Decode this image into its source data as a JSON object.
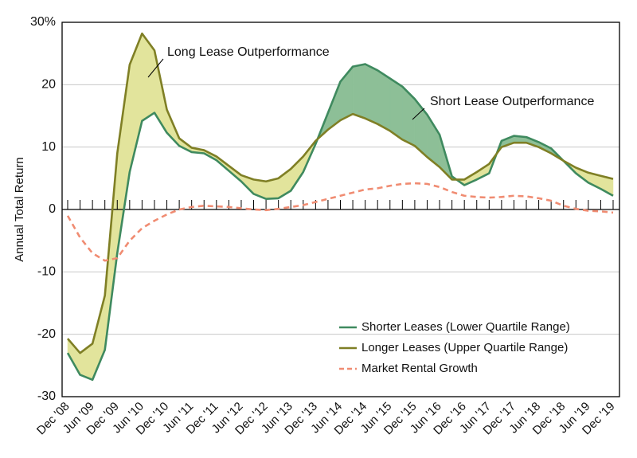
{
  "chart_data": {
    "type": "line",
    "y_label": "Annual Total Return",
    "categories": [
      "Dec '08",
      null,
      "Jun '09",
      null,
      "Dec '09",
      null,
      "Jun '10",
      null,
      "Dec '10",
      null,
      "Jun '11",
      null,
      "Dec '11",
      null,
      "Jun '12",
      null,
      "Dec '12",
      null,
      "Jun '13",
      null,
      "Dec '13",
      null,
      "Jun '14",
      null,
      "Dec '14",
      null,
      "Jun '15",
      null,
      "Dec '15",
      null,
      "Jun '16",
      null,
      "Dec '16",
      null,
      "Jun '17",
      null,
      "Dec '17",
      null,
      "Jun '18",
      null,
      "Dec '18",
      null,
      "Jun '19",
      null,
      "Dec '19"
    ],
    "series": [
      {
        "name": "Shorter Leases (Lower Quartile Range)",
        "color": "#3f8a5f",
        "values": [
          -23,
          -26.5,
          -27.3,
          -22.5,
          -7,
          6,
          14.2,
          15.5,
          12.3,
          10.2,
          9.2,
          9,
          7.9,
          6.2,
          4.5,
          2.5,
          1.7,
          1.8,
          3,
          6,
          10.5,
          15.5,
          20.5,
          22.9,
          23.3,
          22.3,
          21,
          19.7,
          17.7,
          15.2,
          12,
          5.3,
          3.9,
          4.8,
          5.8,
          11,
          11.8,
          11.6,
          10.8,
          9.8,
          7.8,
          5.8,
          4.3,
          3.3,
          2.2
        ]
      },
      {
        "name": "Longer Leases (Upper Quartile Range)",
        "color": "#7f7f25",
        "values": [
          -20.7,
          -23,
          -21.5,
          -13.8,
          9,
          23.2,
          28.2,
          25.5,
          16,
          11.4,
          9.9,
          9.5,
          8.5,
          7,
          5.5,
          4.8,
          4.5,
          5,
          6.5,
          8.5,
          11,
          12.8,
          14.3,
          15.3,
          14.6,
          13.7,
          12.6,
          11.2,
          10.2,
          8.4,
          6.8,
          4.8,
          4.8,
          6,
          7.3,
          10,
          10.7,
          10.7,
          10,
          9,
          7.8,
          6.7,
          5.9,
          5.4,
          4.9
        ]
      },
      {
        "name": "Market Rental Growth",
        "color": "#f08c72",
        "dashed": true,
        "values": [
          -1,
          -4.5,
          -7,
          -8.2,
          -7.8,
          -5,
          -3,
          -1.8,
          -0.8,
          0,
          0.4,
          0.6,
          0.5,
          0.4,
          0.2,
          0,
          -0.1,
          0.1,
          0.4,
          0.7,
          1.2,
          1.7,
          2.2,
          2.7,
          3.2,
          3.4,
          3.8,
          4.1,
          4.2,
          4.1,
          3.6,
          2.8,
          2.2,
          2,
          1.9,
          2,
          2.2,
          2.1,
          1.8,
          1.4,
          0.6,
          0.1,
          -0.2,
          -0.3,
          -0.5
        ]
      }
    ],
    "annotations": [
      {
        "text": "Long Lease Outperformance",
        "color": "#e2e49c"
      },
      {
        "text": "Short Lease Outperformance",
        "color": "#8dbf97"
      }
    ],
    "ylim": [
      -30,
      30
    ],
    "yticks": [
      -30,
      -20,
      -10,
      0,
      10,
      20,
      {
        "value": 30,
        "label": "30%"
      }
    ],
    "grid": true,
    "legend": "lower right"
  }
}
